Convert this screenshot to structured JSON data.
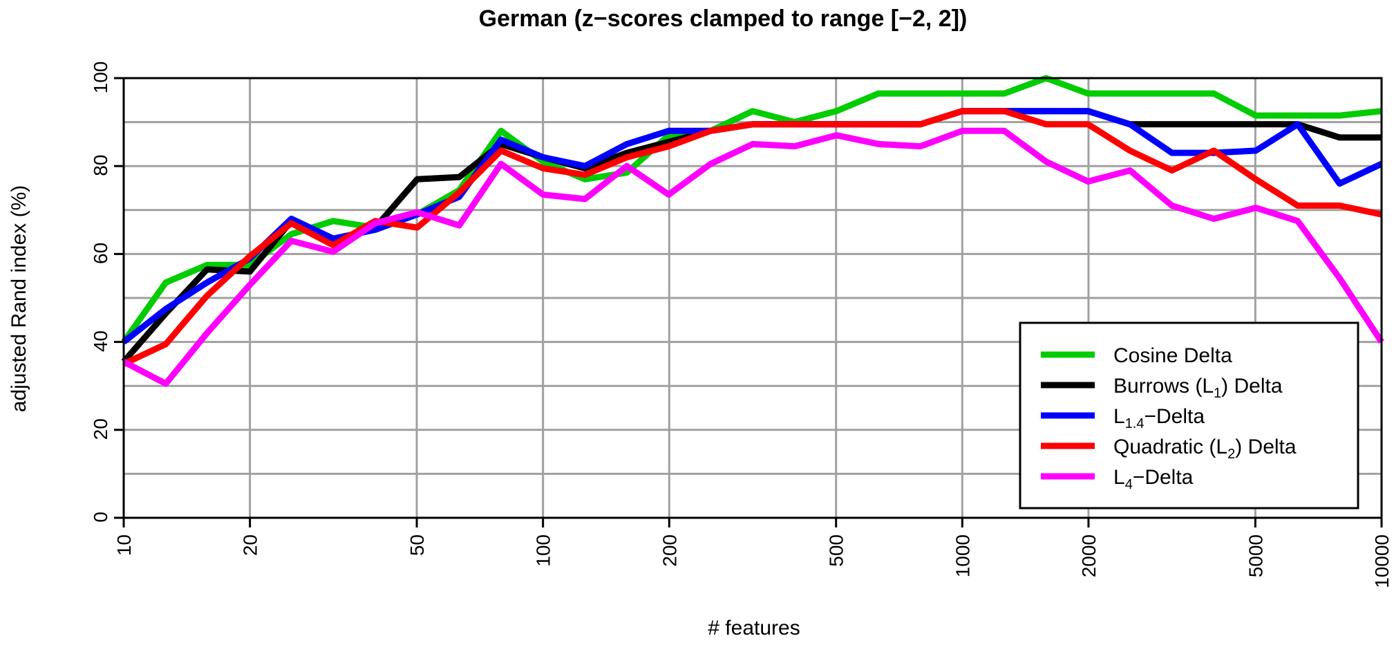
{
  "chart_data": {
    "type": "line",
    "title": "German (z−scores clamped to range [−2, 2])",
    "xlabel": "# features",
    "ylabel": "adjusted Rand index (%)",
    "x_scale": "log",
    "xlim": [
      10,
      10000
    ],
    "ylim": [
      0,
      100
    ],
    "x_ticks": [
      10,
      20,
      50,
      100,
      200,
      500,
      1000,
      2000,
      5000,
      10000
    ],
    "x_tick_labels": [
      "10",
      "20",
      "50",
      "100",
      "200",
      "500",
      "1000",
      "2000",
      "5000",
      "10000"
    ],
    "y_ticks": [
      0,
      20,
      40,
      60,
      80,
      100
    ],
    "y_tick_labels": [
      "0",
      "20",
      "40",
      "60",
      "80",
      "100"
    ],
    "grid": true,
    "legend_position": "bottom-right",
    "x": [
      10,
      12.6,
      15.8,
      20,
      25.1,
      31.6,
      39.8,
      50.1,
      63.1,
      79.4,
      100,
      125.9,
      158.5,
      199.5,
      251.2,
      316.2,
      398.1,
      501.2,
      631,
      794.3,
      1000,
      1258.9,
      1584.9,
      1995.3,
      2511.9,
      3162.3,
      3981.1,
      5011.9,
      6309.6,
      7943.3,
      10000
    ],
    "series": [
      {
        "name": "Cosine Delta",
        "name_main": "Cosine Delta",
        "name_sub": "",
        "name_tail": "",
        "color": "#00cc00",
        "values": [
          40,
          53.5,
          57.5,
          57.5,
          64.5,
          67.5,
          66,
          69,
          74.5,
          88,
          81,
          77,
          78.5,
          87,
          88,
          92.5,
          90,
          92.5,
          96.5,
          96.5,
          96.5,
          96.5,
          100,
          96.5,
          96.5,
          96.5,
          96.5,
          91.5,
          91.5,
          91.5,
          92.5
        ]
      },
      {
        "name": "Burrows (L1) Delta",
        "name_main": "Burrows (L",
        "name_sub": "1",
        "name_tail": ") Delta",
        "color": "#000000",
        "values": [
          35.5,
          46.5,
          56.5,
          56,
          67.5,
          62.5,
          66,
          77,
          77.5,
          85,
          82,
          79.5,
          83,
          85.5,
          88,
          89.5,
          89.5,
          89.5,
          89.5,
          89.5,
          92.5,
          92.5,
          92.5,
          92.5,
          89.5,
          89.5,
          89.5,
          89.5,
          89.5,
          86.5,
          86.5
        ]
      },
      {
        "name": "L1.4-Delta",
        "name_main": "L",
        "name_sub": "1.4",
        "name_tail": "−Delta",
        "color": "#0000ff",
        "values": [
          40,
          47.5,
          53.5,
          59,
          68,
          63.5,
          65.5,
          69,
          73,
          86,
          82,
          80,
          85,
          88,
          88,
          89.5,
          89.5,
          89.5,
          89.5,
          89.5,
          92.5,
          92.5,
          92.5,
          92.5,
          89.5,
          83,
          83,
          83.5,
          89.5,
          76,
          80.5
        ]
      },
      {
        "name": "Quadratic (L2) Delta",
        "name_main": "Quadratic (L",
        "name_sub": "2",
        "name_tail": ") Delta",
        "color": "#ff0000",
        "values": [
          35,
          39.5,
          50.5,
          59.5,
          67,
          62,
          67.5,
          66,
          74,
          83.5,
          79.5,
          78,
          82,
          84.5,
          88,
          89.5,
          89.5,
          89.5,
          89.5,
          89.5,
          92.5,
          92.5,
          89.5,
          89.5,
          83.5,
          79,
          83.5,
          77,
          71,
          71,
          69
        ]
      },
      {
        "name": "L4-Delta",
        "name_main": "L",
        "name_sub": "4",
        "name_tail": "−Delta",
        "color": "#ff00ff",
        "values": [
          35.5,
          30.5,
          42,
          53,
          63,
          60.5,
          67,
          69.5,
          66.5,
          80.5,
          73.5,
          72.5,
          80,
          73.5,
          80.5,
          85,
          84.5,
          87,
          85,
          84.5,
          88,
          88,
          81,
          76.5,
          79,
          71,
          68,
          70.5,
          67.5,
          54.5,
          40
        ]
      }
    ]
  }
}
